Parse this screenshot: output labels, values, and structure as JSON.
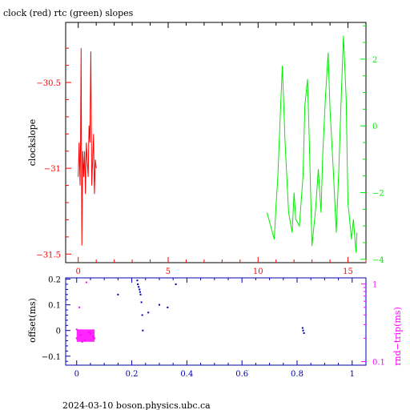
{
  "title": "clock (red) rtc (green) slopes",
  "footer": "2024-03-10 boson.physics.ubc.ca",
  "colors": {
    "clock": "#ff0000",
    "rtc": "#00ee00",
    "offset": "#0000aa",
    "rndtrip": "#ff00ff",
    "frame": "#000000"
  },
  "chart_data": [
    {
      "type": "line",
      "ylabel_left": "clockslope",
      "x_range": [
        -0.7,
        16.0
      ],
      "y_left_range": [
        -31.55,
        -30.15
      ],
      "y_right_range": [
        -4.1,
        3.1
      ],
      "x_ticks": [
        "0",
        "5",
        "10",
        "15"
      ],
      "y_left_ticks": [
        "-30.5",
        "-31",
        "-31.5"
      ],
      "y_right_ticks": [
        "2",
        "0",
        "-2",
        "-4"
      ],
      "series": [
        {
          "name": "clock",
          "axis": "left",
          "x": [
            0.0,
            0.05,
            0.1,
            0.13,
            0.16,
            0.2,
            0.25,
            0.3,
            0.35,
            0.4,
            0.45,
            0.5,
            0.55,
            0.6,
            0.65,
            0.7,
            0.75,
            0.8,
            0.85,
            0.9,
            0.95,
            1.0
          ],
          "y": [
            -31.05,
            -30.85,
            -31.1,
            -30.85,
            -30.3,
            -31.45,
            -30.9,
            -31.05,
            -30.9,
            -31.15,
            -30.85,
            -30.95,
            -31.05,
            -30.75,
            -30.85,
            -30.32,
            -31.1,
            -30.95,
            -30.8,
            -31.15,
            -30.95,
            -31.0
          ]
        },
        {
          "name": "rtc",
          "axis": "right",
          "x": [
            10.5,
            10.7,
            10.9,
            11.0,
            11.1,
            11.25,
            11.35,
            11.5,
            11.7,
            11.9,
            12.0,
            12.1,
            12.3,
            12.5,
            12.6,
            12.75,
            12.85,
            13.0,
            13.2,
            13.35,
            13.5,
            13.6,
            13.75,
            13.9,
            14.0,
            14.2,
            14.35,
            14.5,
            14.6,
            14.75,
            14.9,
            15.0,
            15.2,
            15.3,
            15.45,
            15.5
          ],
          "y": [
            -2.6,
            -3.0,
            -3.4,
            -2.4,
            -1.5,
            0.5,
            1.8,
            -0.5,
            -2.6,
            -3.2,
            -2.0,
            -2.8,
            -3.0,
            -1.5,
            0.6,
            1.4,
            -0.5,
            -3.6,
            -2.5,
            -1.3,
            -2.6,
            -0.8,
            0.9,
            2.2,
            0.5,
            -1.5,
            -3.2,
            -1.2,
            0.5,
            2.7,
            0.8,
            -2.3,
            -3.4,
            -2.8,
            -3.8,
            -3.2
          ]
        }
      ]
    },
    {
      "type": "scatter",
      "ylabel_left": "offset(ms)",
      "ylabel_right": "rnd−trip(ms)",
      "x_range": [
        -0.04,
        1.05
      ],
      "y_left_range": [
        -0.135,
        0.205
      ],
      "y_right_range": [
        0.09,
        1.2
      ],
      "right_scale": "log",
      "x_ticks": [
        "0",
        "0.2",
        "0.4",
        "0.6",
        "0.8",
        "1"
      ],
      "y_left_ticks": [
        "0.2",
        "0.1",
        "0",
        "-0.1"
      ],
      "y_right_ticks": [
        "1",
        "0.1"
      ],
      "series": [
        {
          "name": "offset",
          "axis": "left",
          "x": [
            0.22,
            0.222,
            0.225,
            0.228,
            0.23,
            0.232,
            0.235,
            0.238,
            0.24,
            0.26,
            0.3,
            0.33,
            0.36,
            0.15,
            0.82,
            0.822,
            0.825
          ],
          "y": [
            0.195,
            0.18,
            0.17,
            0.16,
            0.15,
            0.14,
            0.11,
            0.06,
            0.0,
            0.07,
            0.1,
            0.09,
            0.18,
            0.14,
            0.01,
            0.0,
            -0.01
          ]
        },
        {
          "name": "rnd-trip",
          "axis": "right",
          "x": [
            0.0,
            0.015,
            0.03,
            0.045,
            0.06,
            0.0,
            0.02,
            0.05,
            0.065,
            0.01,
            0.035
          ],
          "y": [
            0.2,
            0.22,
            0.19,
            0.24,
            0.21,
            0.26,
            0.18,
            0.23,
            0.2,
            0.5,
            1.05
          ]
        }
      ]
    }
  ]
}
